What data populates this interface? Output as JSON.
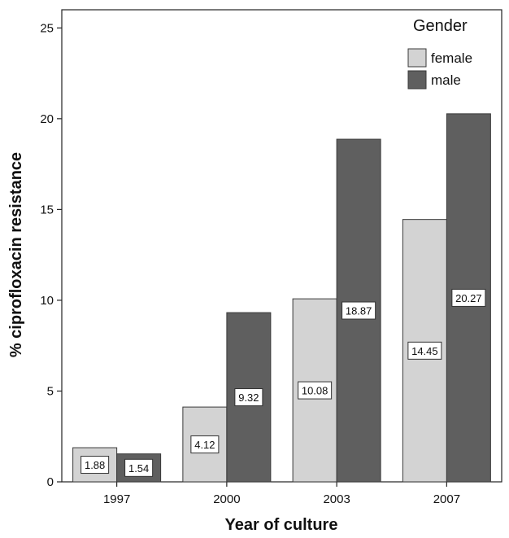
{
  "chart_data": {
    "type": "bar",
    "xlabel": "Year of culture",
    "ylabel": "% ciprofloxacin resistance",
    "categories": [
      "1997",
      "2000",
      "2003",
      "2007"
    ],
    "ylim": [
      0,
      26
    ],
    "yticks": [
      0,
      5,
      10,
      15,
      20,
      25
    ],
    "legend": {
      "title": "Gender",
      "position": "top-right"
    },
    "series": [
      {
        "name": "female",
        "values": [
          1.88,
          4.12,
          10.08,
          14.45
        ],
        "color": "#d3d3d3"
      },
      {
        "name": "male",
        "values": [
          1.54,
          9.32,
          18.87,
          20.27
        ],
        "color": "#5f5f5f"
      }
    ],
    "data_labels": [
      [
        "1.88",
        "4.12",
        "10.08",
        "14.45"
      ],
      [
        "1.54",
        "9.32",
        "18.87",
        "20.27"
      ]
    ],
    "grid": false
  }
}
